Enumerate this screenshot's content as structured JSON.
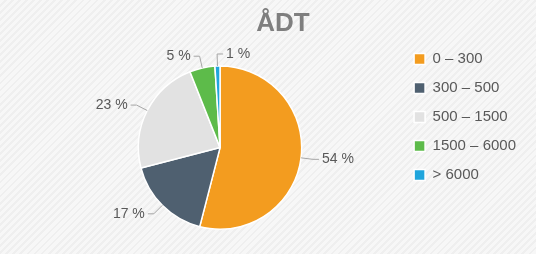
{
  "chart_data": {
    "type": "pie",
    "title": "ÅDT",
    "categories": [
      "0 – 300",
      "300 – 500",
      "500 – 1500",
      "1500 – 6000",
      "> 6000"
    ],
    "values": [
      54,
      17,
      23,
      5,
      1
    ],
    "value_labels": [
      "54 %",
      "17 %",
      "23 %",
      "5 %",
      "1 %"
    ],
    "colors": [
      "#f39c1f",
      "#4f6070",
      "#e2e2e2",
      "#5dbb4a",
      "#1fa5dc"
    ],
    "legend": "right",
    "data_labels": true
  }
}
